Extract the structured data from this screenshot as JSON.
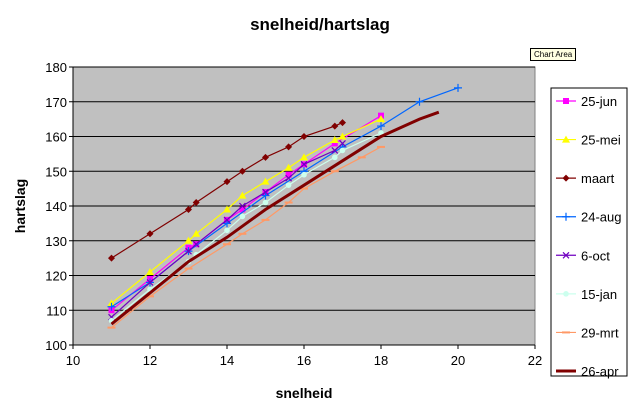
{
  "tooltip": "Chart Area",
  "chart_data": {
    "type": "line",
    "title": "snelheid/hartslag",
    "xlabel": "snelheid",
    "ylabel": "hartslag",
    "xlim": [
      10,
      22
    ],
    "ylim": [
      100,
      180
    ],
    "xticks": [
      "10",
      "12",
      "14",
      "16",
      "18",
      "20",
      "22"
    ],
    "yticks": [
      "100",
      "110",
      "120",
      "130",
      "140",
      "150",
      "160",
      "170",
      "180"
    ],
    "grid": true,
    "plot_background": "#c0c0c0",
    "legend_position": "right",
    "series": [
      {
        "name": "25-jun",
        "color": "#ff00ff",
        "marker": "square",
        "x": [
          11,
          12,
          13,
          13.2,
          14,
          14.4,
          15,
          15.6,
          16,
          16.8,
          18
        ],
        "y": [
          110,
          119,
          128,
          129,
          136,
          139,
          144,
          149,
          152,
          158,
          166
        ]
      },
      {
        "name": "25-mei",
        "color": "#ffff00",
        "marker": "triangle",
        "x": [
          11,
          12,
          13,
          13.2,
          14,
          14.4,
          15,
          15.6,
          16,
          16.8,
          17,
          18
        ],
        "y": [
          112,
          121,
          130,
          132,
          139,
          143,
          147,
          151,
          154,
          159,
          160,
          165
        ]
      },
      {
        "name": "maart",
        "color": "#800000",
        "marker": "diamond",
        "x": [
          11,
          12,
          13,
          13.2,
          14,
          14.4,
          15,
          15.6,
          16,
          16.8,
          17
        ],
        "y": [
          125,
          132,
          139,
          141,
          147,
          150,
          154,
          157,
          160,
          163,
          164
        ]
      },
      {
        "name": "24-aug",
        "color": "#0066ff",
        "marker": "plus",
        "x": [
          11,
          12,
          13,
          14,
          15,
          16,
          17,
          18,
          19,
          20
        ],
        "y": [
          111,
          118,
          127,
          135,
          143,
          150,
          157,
          163,
          170,
          174
        ]
      },
      {
        "name": "6-oct",
        "color": "#7000c0",
        "marker": "cross",
        "x": [
          11,
          12,
          13,
          13.2,
          14,
          14.4,
          15,
          15.6,
          16,
          16.8,
          17
        ],
        "y": [
          108,
          118,
          127,
          129,
          136,
          140,
          144,
          148,
          152,
          156,
          158
        ]
      },
      {
        "name": "15-jan",
        "color": "#ccffee",
        "marker": "circle",
        "x": [
          11,
          12,
          13,
          13.2,
          14,
          14.4,
          15,
          15.6,
          16,
          16.8,
          17,
          18
        ],
        "y": [
          107,
          116,
          124,
          126,
          133,
          137,
          141,
          146,
          149,
          154,
          156,
          161
        ]
      },
      {
        "name": "29-mrt",
        "color": "#ff9966",
        "marker": "dash",
        "x": [
          11,
          12,
          13,
          14,
          14.4,
          15,
          15.6,
          16,
          16.8,
          17.5,
          18
        ],
        "y": [
          105,
          114,
          122,
          129,
          132,
          136,
          141,
          145,
          150,
          154,
          157
        ]
      },
      {
        "name": "26-apr",
        "color": "#800000",
        "marker": "none",
        "x": [
          11,
          12,
          13,
          14,
          15,
          16,
          17,
          18,
          19,
          19.5
        ],
        "y": [
          106,
          115,
          124,
          131,
          139,
          146,
          153,
          160,
          165,
          167
        ]
      }
    ]
  }
}
